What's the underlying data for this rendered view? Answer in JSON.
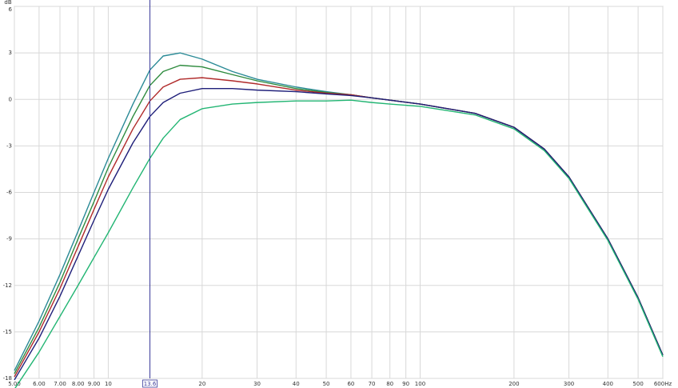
{
  "chart_data": {
    "type": "line",
    "y_label": "dB",
    "log_x": true,
    "grid": true,
    "xlim": [
      5,
      600
    ],
    "ylim": [
      -18,
      6
    ],
    "xticks": [
      {
        "value": 5,
        "label": "5.00"
      },
      {
        "value": 6,
        "label": "6.00"
      },
      {
        "value": 7,
        "label": "7.00"
      },
      {
        "value": 8,
        "label": "8.00"
      },
      {
        "value": 9,
        "label": "9.00"
      },
      10,
      20,
      30,
      40,
      50,
      60,
      70,
      80,
      90,
      100,
      200,
      300,
      400,
      500,
      {
        "value": 600,
        "label": "600Hz"
      }
    ],
    "yticks": [
      6,
      3,
      0,
      -3,
      -6,
      -9,
      -12,
      -15,
      -18
    ],
    "cursor_x": 13.6,
    "cursor_color": "#3a3a9a",
    "x": [
      5,
      6,
      7,
      8,
      9,
      10,
      12,
      13.6,
      15,
      17,
      20,
      25,
      30,
      40,
      50,
      60,
      70,
      80,
      100,
      150,
      200,
      250,
      300,
      400,
      500,
      600
    ],
    "series": [
      {
        "color": "#2a8a96",
        "values": [
          -17.5,
          -14.3,
          -11.3,
          -8.5,
          -6.0,
          -3.8,
          -0.3,
          1.9,
          2.8,
          3.0,
          2.6,
          1.8,
          1.3,
          0.8,
          0.5,
          0.3,
          0.1,
          -0.05,
          -0.3,
          -0.9,
          -1.8,
          -3.2,
          -5.0,
          -9.0,
          -12.8,
          -16.5
        ]
      },
      {
        "color": "#2e8b3e",
        "values": [
          -17.7,
          -14.7,
          -11.8,
          -9.0,
          -6.6,
          -4.4,
          -1.1,
          0.9,
          1.8,
          2.2,
          2.1,
          1.6,
          1.2,
          0.7,
          0.45,
          0.3,
          0.1,
          -0.05,
          -0.3,
          -0.9,
          -1.8,
          -3.2,
          -5.0,
          -9.0,
          -12.8,
          -16.5
        ]
      },
      {
        "color": "#b02a2a",
        "values": [
          -17.9,
          -15.0,
          -12.2,
          -9.5,
          -7.1,
          -5.0,
          -1.9,
          -0.1,
          0.8,
          1.3,
          1.4,
          1.2,
          1.0,
          0.6,
          0.4,
          0.3,
          0.1,
          -0.05,
          -0.3,
          -0.9,
          -1.8,
          -3.2,
          -5.0,
          -9.0,
          -12.8,
          -16.5
        ]
      },
      {
        "color": "#1f1f7a",
        "values": [
          -18.1,
          -15.4,
          -12.7,
          -10.1,
          -7.8,
          -5.8,
          -2.8,
          -1.1,
          -0.2,
          0.4,
          0.7,
          0.7,
          0.6,
          0.5,
          0.35,
          0.25,
          0.1,
          -0.05,
          -0.3,
          -0.9,
          -1.8,
          -3.2,
          -5.0,
          -9.0,
          -12.8,
          -16.5
        ]
      },
      {
        "color": "#22b573",
        "values": [
          -18.7,
          -16.3,
          -14.0,
          -12.0,
          -10.2,
          -8.6,
          -5.7,
          -3.8,
          -2.5,
          -1.3,
          -0.6,
          -0.3,
          -0.2,
          -0.1,
          -0.1,
          -0.05,
          -0.2,
          -0.3,
          -0.45,
          -1.0,
          -1.9,
          -3.3,
          -5.1,
          -9.1,
          -12.9,
          -16.6
        ]
      }
    ]
  }
}
